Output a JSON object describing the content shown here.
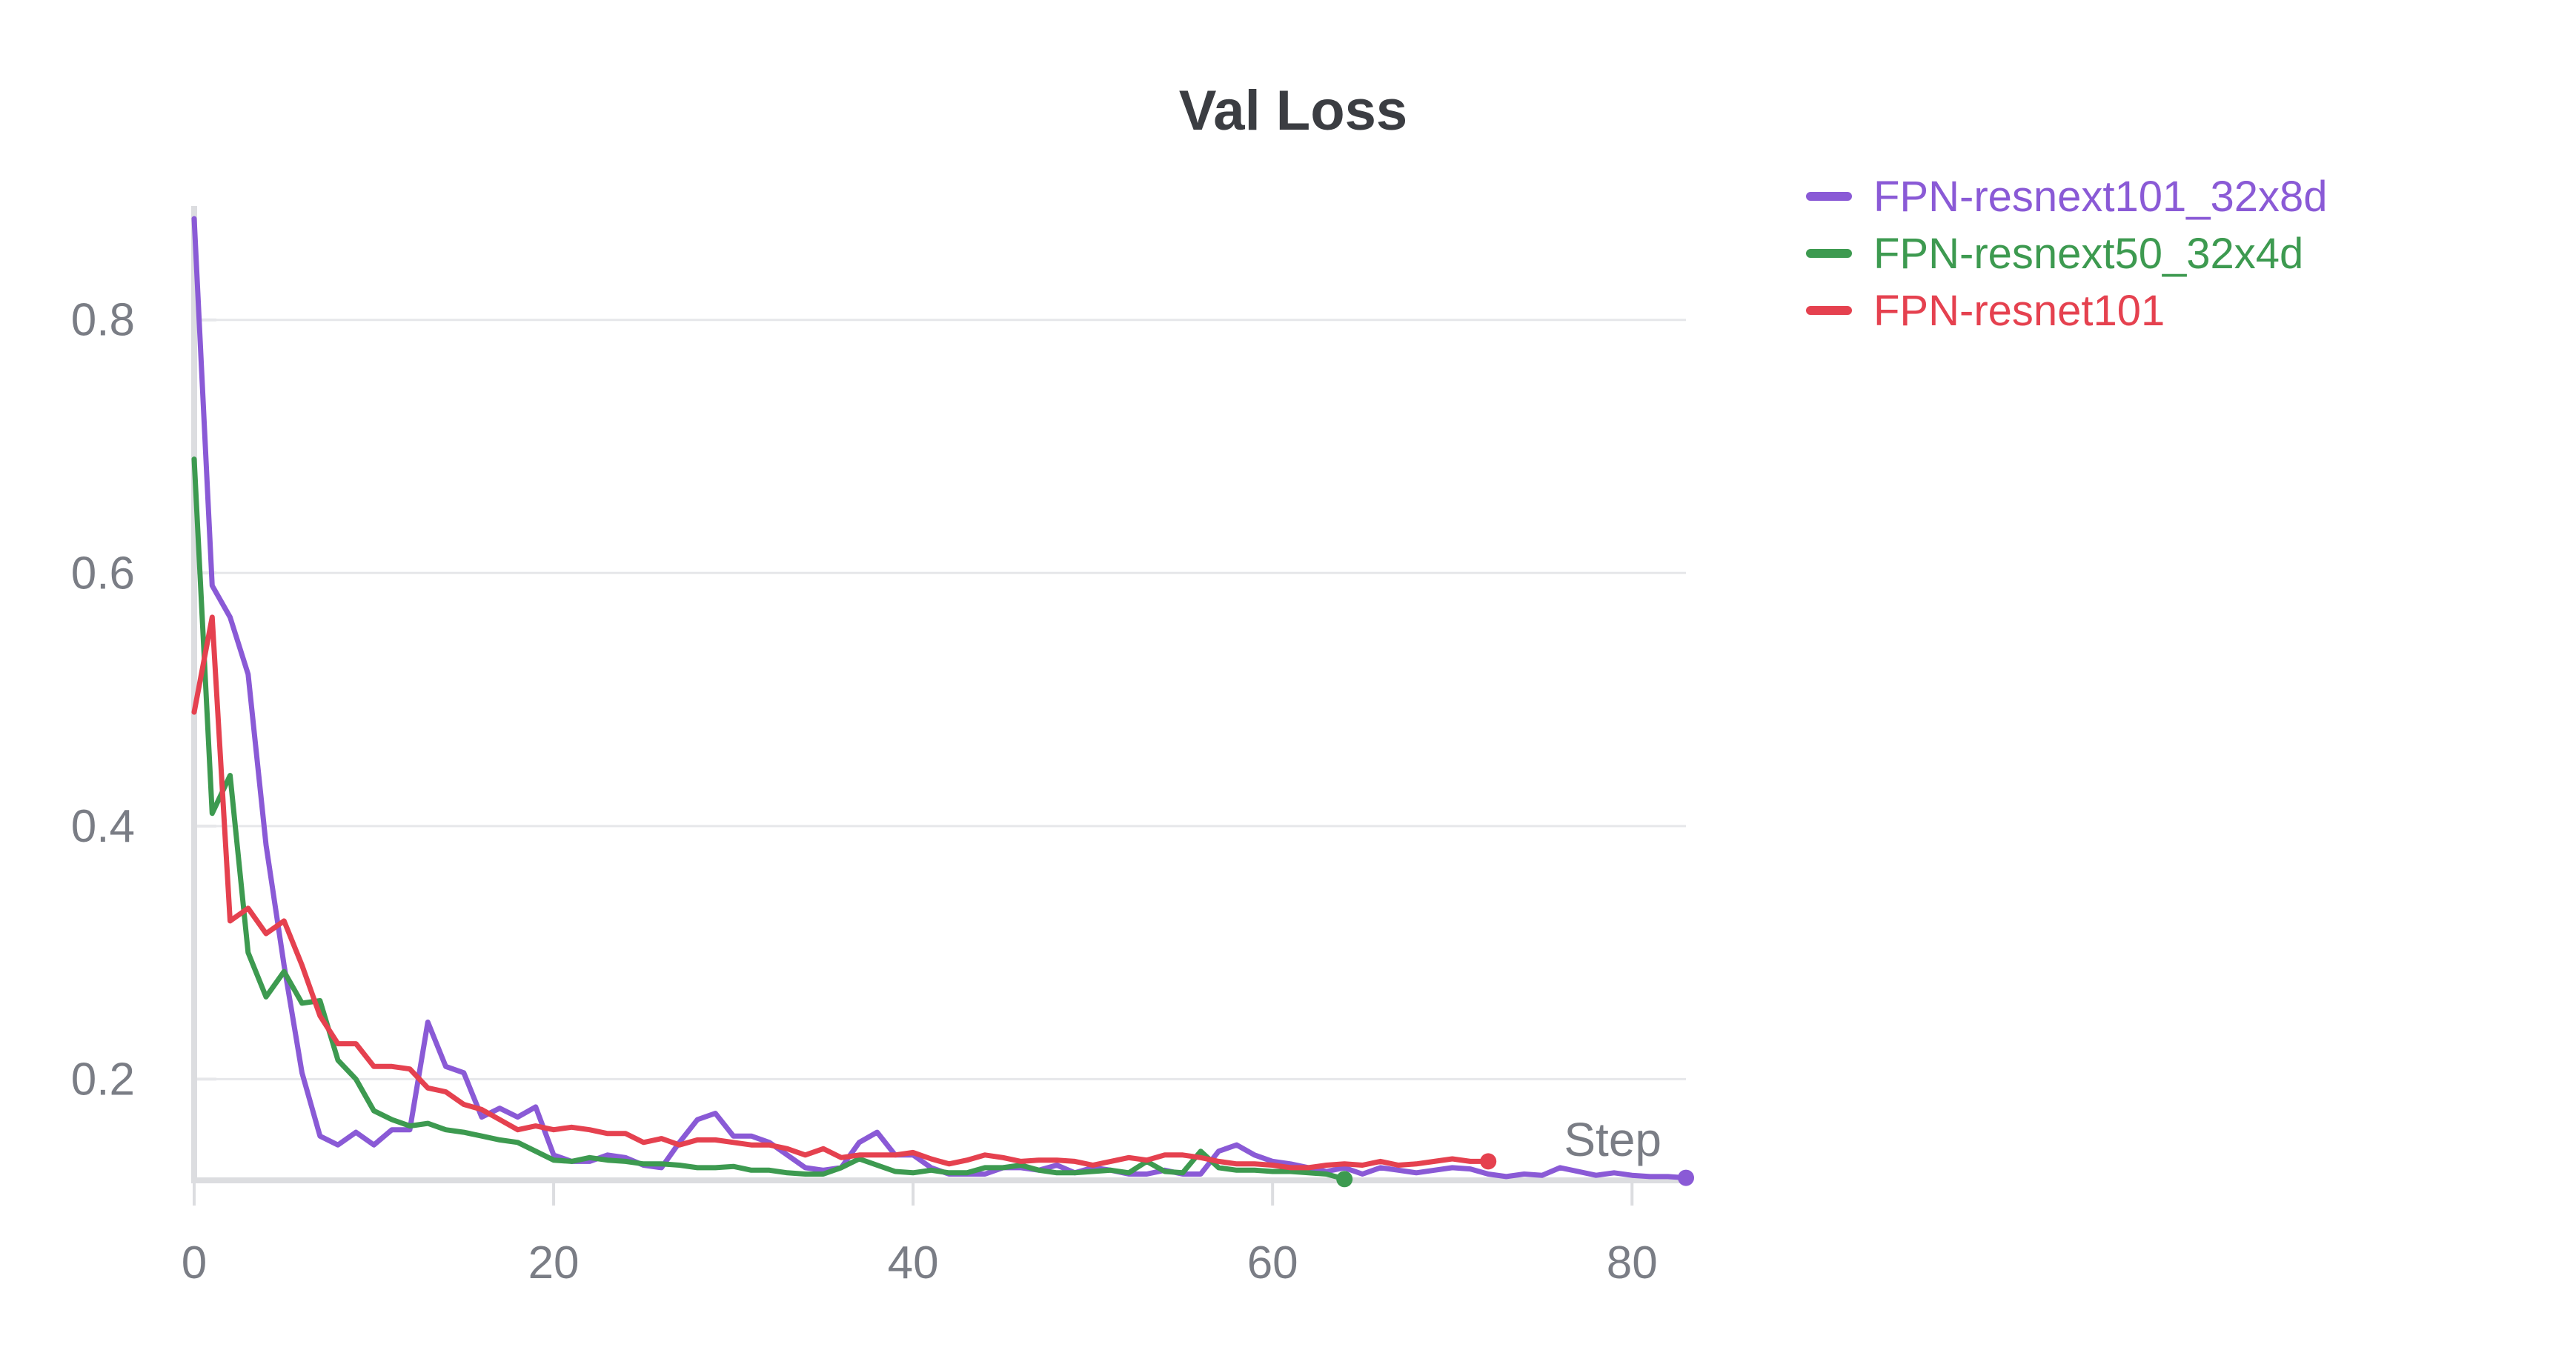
{
  "chart_data": {
    "type": "line",
    "title": "Val Loss",
    "xlabel": "Step",
    "ylabel": "",
    "xlim": [
      0,
      83
    ],
    "ylim": [
      0.12,
      0.89
    ],
    "x_ticks": [
      0,
      20,
      40,
      60,
      80
    ],
    "y_ticks": [
      0.2,
      0.4,
      0.6,
      0.8
    ],
    "x_tick_labels": [
      "0",
      "20",
      "40",
      "60",
      "80"
    ],
    "y_tick_labels": [
      "0.2",
      "0.4",
      "0.6",
      "0.8"
    ],
    "grid": true,
    "legend_position": "top-right",
    "series": [
      {
        "name": "FPN-resnext101_32x8d",
        "color": "#8a5ad6",
        "x": [
          0,
          1,
          2,
          3,
          4,
          5,
          6,
          7,
          8,
          9,
          10,
          11,
          12,
          13,
          14,
          15,
          16,
          17,
          18,
          19,
          20,
          21,
          22,
          23,
          24,
          25,
          26,
          27,
          28,
          29,
          30,
          31,
          32,
          33,
          34,
          35,
          36,
          37,
          38,
          39,
          40,
          41,
          42,
          43,
          44,
          45,
          46,
          47,
          48,
          49,
          50,
          51,
          52,
          53,
          54,
          55,
          56,
          57,
          58,
          59,
          60,
          61,
          62,
          63,
          64,
          65,
          66,
          67,
          68,
          69,
          70,
          71,
          72,
          73,
          74,
          75,
          76,
          77,
          78,
          79,
          80,
          81,
          82,
          83
        ],
        "values": [
          0.88,
          0.59,
          0.565,
          0.52,
          0.385,
          0.29,
          0.205,
          0.155,
          0.148,
          0.158,
          0.148,
          0.16,
          0.16,
          0.245,
          0.21,
          0.205,
          0.17,
          0.177,
          0.17,
          0.178,
          0.14,
          0.135,
          0.135,
          0.14,
          0.138,
          0.132,
          0.13,
          0.15,
          0.168,
          0.173,
          0.155,
          0.155,
          0.15,
          0.14,
          0.13,
          0.128,
          0.13,
          0.15,
          0.158,
          0.14,
          0.14,
          0.13,
          0.125,
          0.125,
          0.125,
          0.13,
          0.13,
          0.128,
          0.132,
          0.126,
          0.13,
          0.128,
          0.125,
          0.125,
          0.128,
          0.125,
          0.125,
          0.143,
          0.148,
          0.14,
          0.135,
          0.133,
          0.13,
          0.127,
          0.13,
          0.125,
          0.13,
          0.128,
          0.126,
          0.128,
          0.13,
          0.129,
          0.125,
          0.123,
          0.125,
          0.124,
          0.13,
          0.127,
          0.124,
          0.126,
          0.124,
          0.123,
          0.123,
          0.122
        ]
      },
      {
        "name": "FPN-resnext50_32x4d",
        "color": "#3d9a50",
        "x": [
          0,
          1,
          2,
          3,
          4,
          5,
          6,
          7,
          8,
          9,
          10,
          11,
          12,
          13,
          14,
          15,
          16,
          17,
          18,
          19,
          20,
          21,
          22,
          23,
          24,
          25,
          26,
          27,
          28,
          29,
          30,
          31,
          32,
          33,
          34,
          35,
          36,
          37,
          38,
          39,
          40,
          41,
          42,
          43,
          44,
          45,
          46,
          47,
          48,
          49,
          50,
          51,
          52,
          53,
          54,
          55,
          56,
          57,
          58,
          59,
          60,
          61,
          62,
          63,
          64
        ],
        "values": [
          0.69,
          0.41,
          0.44,
          0.3,
          0.265,
          0.285,
          0.26,
          0.262,
          0.215,
          0.2,
          0.175,
          0.168,
          0.163,
          0.165,
          0.16,
          0.158,
          0.155,
          0.152,
          0.15,
          0.143,
          0.136,
          0.135,
          0.138,
          0.136,
          0.135,
          0.133,
          0.133,
          0.132,
          0.13,
          0.13,
          0.131,
          0.128,
          0.128,
          0.126,
          0.125,
          0.125,
          0.13,
          0.137,
          0.132,
          0.127,
          0.126,
          0.128,
          0.126,
          0.126,
          0.13,
          0.13,
          0.132,
          0.128,
          0.126,
          0.126,
          0.127,
          0.128,
          0.126,
          0.135,
          0.127,
          0.126,
          0.143,
          0.13,
          0.128,
          0.128,
          0.127,
          0.127,
          0.126,
          0.125,
          0.121
        ]
      },
      {
        "name": "FPN-resnet101",
        "color": "#e5414f",
        "x": [
          0,
          1,
          2,
          3,
          4,
          5,
          6,
          7,
          8,
          9,
          10,
          11,
          12,
          13,
          14,
          15,
          16,
          17,
          18,
          19,
          20,
          21,
          22,
          23,
          24,
          25,
          26,
          27,
          28,
          29,
          30,
          31,
          32,
          33,
          34,
          35,
          36,
          37,
          38,
          39,
          40,
          41,
          42,
          43,
          44,
          45,
          46,
          47,
          48,
          49,
          50,
          51,
          52,
          53,
          54,
          55,
          56,
          57,
          58,
          59,
          60,
          61,
          62,
          63,
          64,
          65,
          66,
          67,
          68,
          69,
          70,
          71,
          72
        ],
        "values": [
          0.49,
          0.565,
          0.325,
          0.335,
          0.315,
          0.325,
          0.29,
          0.25,
          0.228,
          0.228,
          0.21,
          0.21,
          0.208,
          0.193,
          0.19,
          0.18,
          0.176,
          0.168,
          0.16,
          0.163,
          0.16,
          0.162,
          0.16,
          0.157,
          0.157,
          0.15,
          0.153,
          0.148,
          0.152,
          0.152,
          0.15,
          0.148,
          0.148,
          0.145,
          0.14,
          0.145,
          0.138,
          0.14,
          0.14,
          0.14,
          0.142,
          0.137,
          0.133,
          0.136,
          0.14,
          0.138,
          0.135,
          0.136,
          0.136,
          0.135,
          0.132,
          0.135,
          0.138,
          0.136,
          0.14,
          0.14,
          0.138,
          0.135,
          0.133,
          0.133,
          0.132,
          0.13,
          0.13,
          0.132,
          0.133,
          0.132,
          0.135,
          0.132,
          0.133,
          0.135,
          0.137,
          0.135,
          0.135
        ]
      }
    ]
  }
}
